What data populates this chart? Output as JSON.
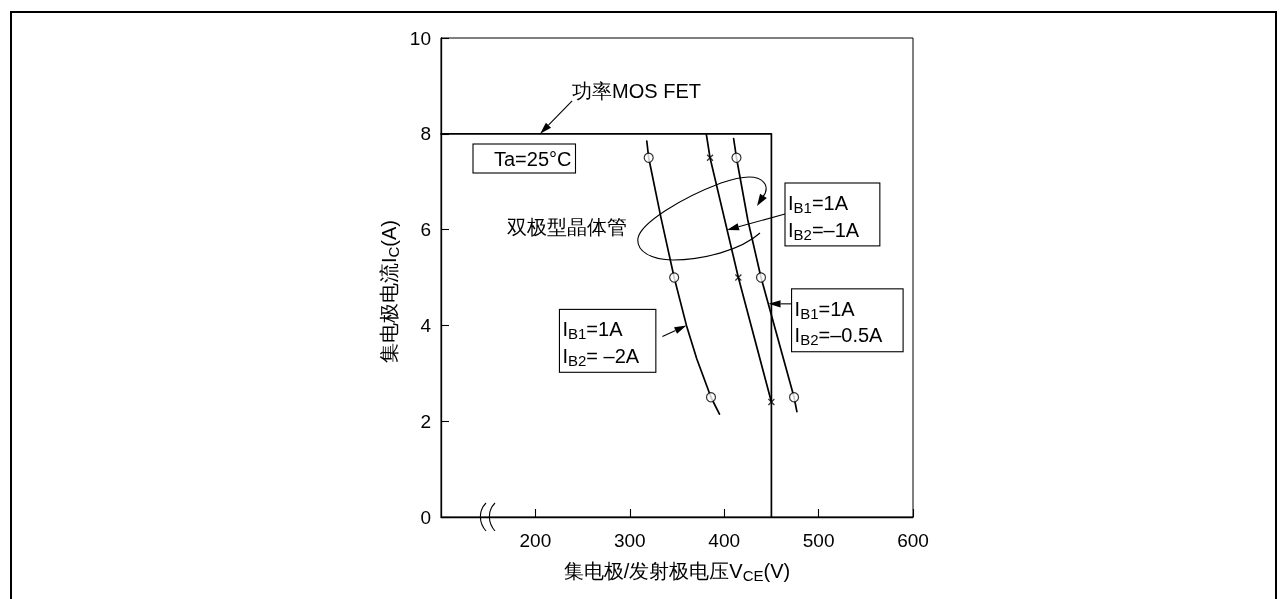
{
  "chart_data": {
    "type": "line",
    "xlabel": "集电极/发射极电压V$_{CE}$(V)",
    "ylabel": "集电极电流I$_{C}$(A)",
    "xlim": [
      100,
      600
    ],
    "xticks": [
      200,
      300,
      400,
      500,
      600
    ],
    "ylim": [
      0,
      10
    ],
    "yticks": [
      0,
      2,
      4,
      6,
      8,
      10
    ],
    "marker": "none",
    "series": [
      {
        "color": "#000000",
        "x": [
          100,
          450,
          450
        ],
        "values": [
          8,
          8,
          0
        ]
      },
      {
        "color": "#000000",
        "x": [
          318,
          320,
          333,
          347,
          360,
          371,
          386,
          395
        ],
        "values": [
          7.85,
          7.5,
          6.25,
          5,
          4,
          3.3,
          2.5,
          2.15
        ]
      },
      {
        "type": "scatter",
        "marker": "circle",
        "color": "#000000",
        "x": [
          320,
          347,
          386
        ],
        "values": [
          7.5,
          5,
          2.5
        ]
      },
      {
        "color": "#000000",
        "x": [
          381,
          385,
          415,
          450
        ],
        "values": [
          8,
          7.5,
          5,
          2.4
        ]
      },
      {
        "type": "scatter",
        "marker": "cross",
        "color": "#000000",
        "x": [
          385,
          415,
          450
        ],
        "values": [
          7.5,
          5,
          2.4
        ]
      },
      {
        "color": "#000000",
        "x": [
          410,
          413,
          425,
          439,
          474,
          477
        ],
        "values": [
          7.9,
          7.5,
          6.2,
          5,
          2.5,
          2.2
        ]
      },
      {
        "type": "scatter",
        "marker": "circle",
        "color": "#000000",
        "x": [
          413,
          439,
          474
        ],
        "values": [
          7.5,
          5,
          2.5
        ]
      }
    ],
    "annotations": [
      {
        "text": "功率MOS FET",
        "x": 205,
        "y": 8
      },
      "Ta=25°C",
      "双极型晶体管",
      "I$_{B1}$=1A\nI$_{B2}$=–1A",
      {
        "text": "I$_{B1}$=1A\nI$_{B2}$=–0.5A",
        "x": 447,
        "y": 4.45
      },
      {
        "text": "I$_{B1}$=1A\nI$_{B2}$= –2A",
        "x": 360,
        "y": 4
      }
    ]
  }
}
